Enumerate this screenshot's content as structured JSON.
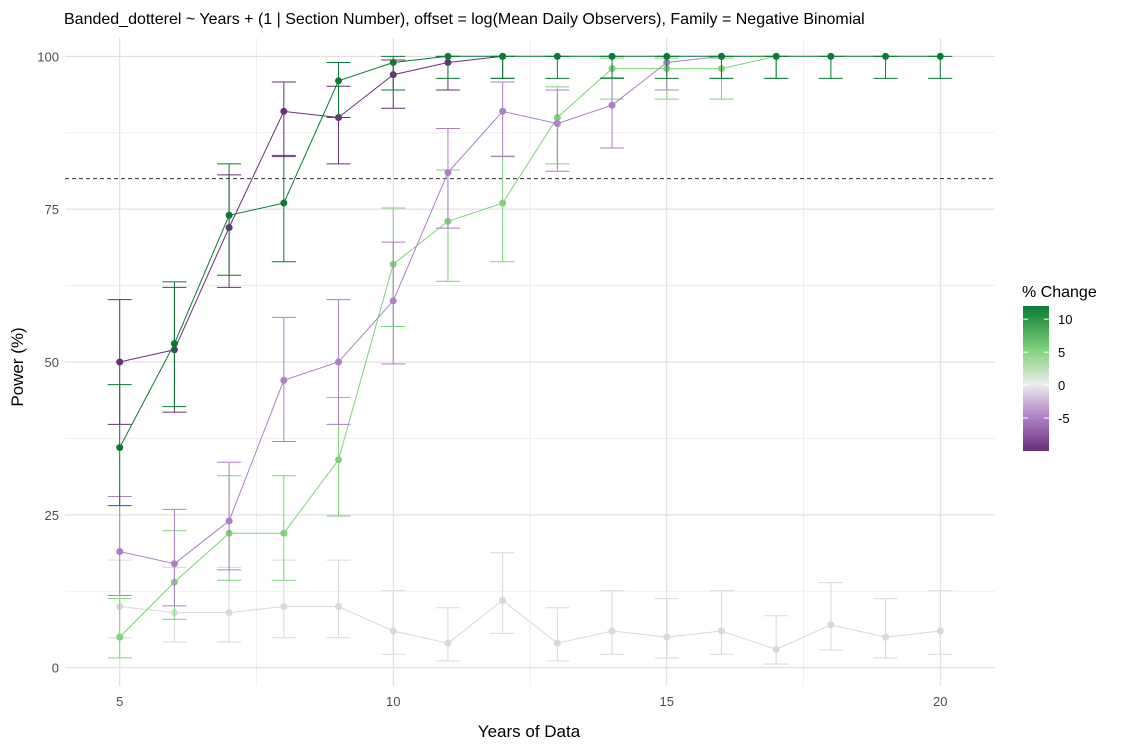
{
  "chart_data": {
    "type": "line",
    "title": "Banded_dotterel ~ Years + (1 | Section Number), offset = log(Mean Daily Observers), Family = Negative Binomial",
    "xlabel": "Years of Data",
    "ylabel": "Power (%)",
    "xlim": [
      4,
      21
    ],
    "ylim": [
      -3,
      103
    ],
    "x_ticks": [
      5,
      10,
      15,
      20
    ],
    "y_ticks": [
      0,
      25,
      50,
      75,
      100
    ],
    "x_tick_labels": [
      "5",
      "10",
      "15",
      "20"
    ],
    "y_tick_labels": [
      "0",
      "25",
      "50",
      "75",
      "100"
    ],
    "threshold": 80,
    "grid": true,
    "legend": {
      "title": "% Change",
      "placement": "right",
      "ticks": [
        10,
        5,
        0,
        -5
      ],
      "tick_labels": [
        "10",
        "5",
        "0",
        "-5"
      ],
      "range": [
        -10,
        12
      ]
    },
    "series": [
      {
        "change": 10,
        "color": "#0a7a34",
        "x": [
          5,
          6,
          7,
          8,
          9,
          10,
          11,
          12,
          13,
          14,
          15,
          16,
          17,
          18,
          19,
          20
        ],
        "y": [
          36,
          53,
          74,
          76,
          96,
          99,
          100,
          100,
          100,
          100,
          100,
          100,
          100,
          100,
          100,
          100
        ],
        "lo": [
          26.5,
          42.7,
          64.2,
          66.4,
          90,
          94.5,
          96.4,
          96.4,
          96.4,
          96.4,
          96.4,
          96.4,
          96.4,
          96.4,
          96.4,
          96.4
        ],
        "hi": [
          46.3,
          63.1,
          82.4,
          83.8,
          99,
          100,
          100,
          100,
          100,
          100,
          100,
          100,
          100,
          100,
          100,
          100
        ]
      },
      {
        "change": -10,
        "color": "#6a2f7a",
        "x": [
          5,
          6,
          7,
          8,
          9,
          10,
          11,
          12
        ],
        "y": [
          50,
          52,
          72,
          91,
          90,
          97,
          99,
          100
        ],
        "lo": [
          39.8,
          41.8,
          62.2,
          83.6,
          82.4,
          91.5,
          94.5,
          96.4
        ],
        "hi": [
          60.2,
          62.2,
          80.6,
          95.8,
          95.1,
          99.4,
          100,
          100
        ]
      },
      {
        "change": 5,
        "color": "#7fd27a",
        "x": [
          5,
          6,
          7,
          8,
          9,
          10,
          11,
          12,
          13,
          14,
          15,
          16,
          17
        ],
        "y": [
          5,
          14,
          22,
          22,
          34,
          66,
          73,
          76,
          90,
          98,
          98,
          98,
          100
        ],
        "lo": [
          1.6,
          7.9,
          14.3,
          14.3,
          24.8,
          55.8,
          63.2,
          66.4,
          82.4,
          93,
          93,
          93,
          96.4
        ],
        "hi": [
          11.3,
          22.4,
          31.4,
          31.4,
          44.2,
          75.2,
          81.4,
          83.7,
          95,
          99.7,
          99.7,
          99.7,
          100
        ]
      },
      {
        "change": -5,
        "color": "#ad7fc4",
        "x": [
          5,
          6,
          7,
          8,
          9,
          10,
          11,
          12,
          13,
          14,
          15,
          16
        ],
        "y": [
          19,
          17,
          24,
          47,
          50,
          60,
          81,
          91,
          89,
          92,
          99,
          100
        ],
        "lo": [
          11.8,
          10.1,
          16,
          37,
          39.8,
          49.7,
          71.9,
          83.6,
          81.2,
          85,
          94.5,
          96.4
        ],
        "hi": [
          28,
          25.9,
          33.6,
          57.3,
          60.2,
          69.6,
          88.2,
          95.8,
          94.5,
          96.5,
          100,
          100
        ]
      },
      {
        "change": 0,
        "color": "#d9d9d9",
        "x": [
          5,
          6,
          7,
          8,
          9,
          10,
          11,
          12,
          13,
          14,
          15,
          16,
          17,
          18,
          19,
          20
        ],
        "y": [
          10,
          9,
          9,
          10,
          10,
          6,
          4,
          11,
          4,
          6,
          5,
          6,
          3,
          7,
          5,
          6
        ],
        "lo": [
          4.9,
          4.2,
          4.2,
          4.9,
          4.9,
          2.2,
          1.1,
          5.6,
          1.1,
          2.2,
          1.6,
          2.2,
          0.6,
          2.9,
          1.6,
          2.2
        ],
        "hi": [
          17.6,
          16.4,
          16.4,
          17.6,
          17.6,
          12.6,
          9.8,
          18.8,
          9.8,
          12.6,
          11.3,
          12.6,
          8.5,
          13.9,
          11.3,
          12.6
        ]
      }
    ]
  }
}
